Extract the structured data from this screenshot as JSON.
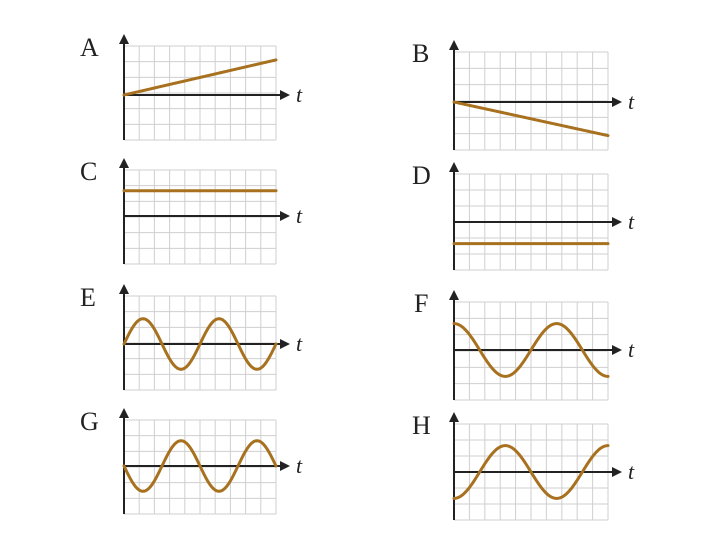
{
  "curve_color": "#a8711f",
  "axis_color": "#222222",
  "grid_color": "#cfcfcf",
  "time_axis_label": "t",
  "panels": [
    {
      "label": "A",
      "kind": "line",
      "y_start": 0.0,
      "y_end": 0.78
    },
    {
      "label": "B",
      "kind": "line",
      "y_start": 0.0,
      "y_end": -0.7
    },
    {
      "label": "C",
      "kind": "constant",
      "value": 0.55
    },
    {
      "label": "D",
      "kind": "constant",
      "value": -0.45
    },
    {
      "label": "E",
      "kind": "sine",
      "amplitude": 0.55,
      "phase": "sin",
      "cycles": 2
    },
    {
      "label": "F",
      "kind": "sine",
      "amplitude": 0.55,
      "phase": "cos",
      "cycles": 1.5
    },
    {
      "label": "G",
      "kind": "sine",
      "amplitude": 0.55,
      "phase": "-sin",
      "cycles": 2
    },
    {
      "label": "H",
      "kind": "sine",
      "amplitude": 0.55,
      "phase": "-cos",
      "cycles": 1.5
    }
  ]
}
